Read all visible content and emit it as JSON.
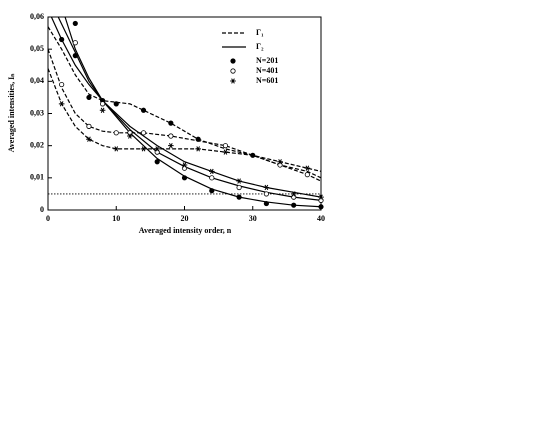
{
  "chart_data": {
    "type": "line",
    "xlabel": "Averaged intensity order, n",
    "ylabel": "Averaged intensities, Iₙ",
    "xlim": [
      0,
      40
    ],
    "xticks": [
      0,
      10,
      20,
      30,
      40
    ],
    "ylim": [
      0,
      0.06
    ],
    "yticks": [
      0,
      {
        "value": 0.01,
        "label": "0,01"
      },
      {
        "value": 0.02,
        "label": "0,02"
      },
      {
        "value": 0.03,
        "label": "0,03"
      },
      {
        "value": 0.04,
        "label": "0,04"
      },
      {
        "value": 0.05,
        "label": "0,05"
      },
      {
        "value": 0.06,
        "label": "0,06"
      }
    ],
    "threshold": 0.005,
    "legend": [
      {
        "label": "Γ₁",
        "style": "dashed"
      },
      {
        "label": "Γ₂",
        "style": "solid"
      }
    ],
    "curves": [
      {
        "style": "dashed",
        "x": [
          0,
          2,
          4,
          6,
          8,
          10,
          12,
          14,
          18,
          22,
          26,
          30,
          34,
          38,
          40
        ],
        "values": [
          0.057,
          0.05,
          0.042,
          0.036,
          0.034,
          0.0335,
          0.033,
          0.031,
          0.027,
          0.022,
          0.019,
          0.017,
          0.014,
          0.012,
          0.01
        ]
      },
      {
        "style": "dashed",
        "x": [
          0,
          2,
          4,
          6,
          8,
          10,
          14,
          18,
          22,
          26,
          30,
          34,
          38,
          40
        ],
        "values": [
          0.05,
          0.038,
          0.03,
          0.026,
          0.0245,
          0.024,
          0.024,
          0.023,
          0.0215,
          0.02,
          0.017,
          0.014,
          0.011,
          0.009
        ]
      },
      {
        "style": "dashed",
        "x": [
          0,
          2,
          4,
          6,
          8,
          10,
          14,
          18,
          22,
          26,
          30,
          34,
          38,
          40
        ],
        "values": [
          0.044,
          0.033,
          0.026,
          0.022,
          0.02,
          0.019,
          0.019,
          0.019,
          0.019,
          0.018,
          0.017,
          0.015,
          0.013,
          0.012
        ]
      },
      {
        "style": "solid",
        "x": [
          2.5,
          4,
          6,
          8,
          12,
          16,
          20,
          24,
          28,
          32,
          36,
          40
        ],
        "values": [
          0.06,
          0.05,
          0.041,
          0.034,
          0.024,
          0.016,
          0.0105,
          0.0065,
          0.004,
          0.0025,
          0.0015,
          0.001
        ]
      },
      {
        "style": "solid",
        "x": [
          1.5,
          4,
          6,
          8,
          12,
          16,
          20,
          24,
          28,
          32,
          36,
          40
        ],
        "values": [
          0.06,
          0.049,
          0.04,
          0.034,
          0.025,
          0.018,
          0.0135,
          0.01,
          0.0075,
          0.0055,
          0.004,
          0.003
        ]
      },
      {
        "style": "solid",
        "x": [
          0.5,
          2,
          4,
          6,
          8,
          12,
          16,
          20,
          24,
          28,
          32,
          36,
          40
        ],
        "values": [
          0.06,
          0.053,
          0.045,
          0.039,
          0.034,
          0.026,
          0.02,
          0.015,
          0.012,
          0.009,
          0.007,
          0.0055,
          0.004
        ]
      }
    ],
    "series": [
      {
        "name": "N=201",
        "marker": "filled",
        "x": [
          2,
          4,
          6,
          10,
          14,
          18,
          22,
          30,
          4,
          8,
          12,
          16,
          20,
          24,
          28,
          32,
          36,
          40
        ],
        "values": [
          0.053,
          0.048,
          0.035,
          0.033,
          0.031,
          0.027,
          0.022,
          0.017,
          0.058,
          0.034,
          0.024,
          0.015,
          0.01,
          0.006,
          0.004,
          0.002,
          0.0015,
          0.001
        ]
      },
      {
        "name": "N=401",
        "marker": "open",
        "x": [
          2,
          6,
          10,
          14,
          18,
          26,
          34,
          38,
          4,
          8,
          12,
          16,
          20,
          24,
          28,
          32,
          36,
          40
        ],
        "values": [
          0.039,
          0.026,
          0.024,
          0.024,
          0.023,
          0.02,
          0.014,
          0.011,
          0.052,
          0.033,
          0.024,
          0.018,
          0.013,
          0.01,
          0.007,
          0.005,
          0.004,
          0.003
        ]
      },
      {
        "name": "N=601",
        "marker": "star",
        "x": [
          2,
          6,
          10,
          14,
          18,
          22,
          26,
          34,
          38,
          8,
          12,
          16,
          20,
          24,
          28,
          32,
          36,
          40
        ],
        "values": [
          0.033,
          0.022,
          0.019,
          0.019,
          0.02,
          0.019,
          0.018,
          0.015,
          0.013,
          0.031,
          0.023,
          0.019,
          0.014,
          0.012,
          0.009,
          0.007,
          0.005,
          0.004
        ]
      }
    ]
  }
}
